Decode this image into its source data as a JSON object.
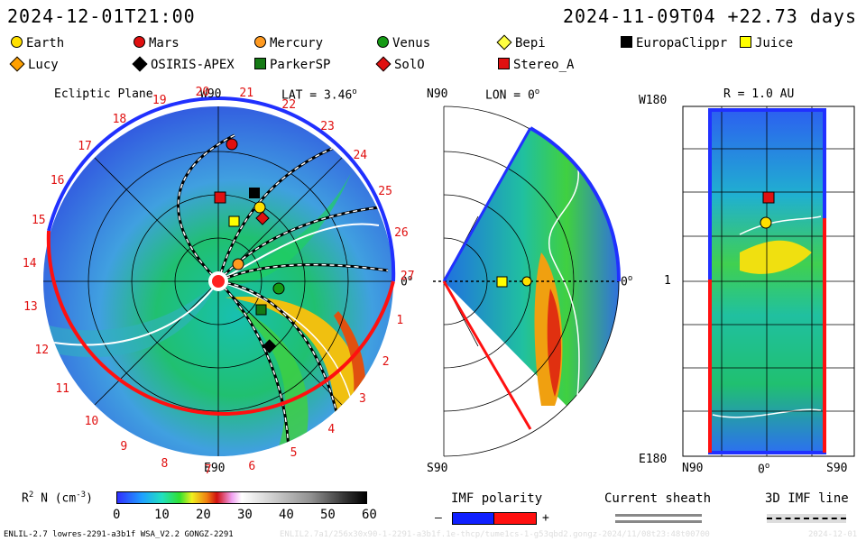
{
  "header": {
    "left_time": "2024-12-01T21:00",
    "right_time": "2024-11-09T04 +22.73 days"
  },
  "legend": [
    {
      "label": "Earth",
      "shape": "circle",
      "color": "#ffe000"
    },
    {
      "label": "Mars",
      "shape": "circle",
      "color": "#e01010"
    },
    {
      "label": "Mercury",
      "shape": "circle",
      "color": "#ff9a20"
    },
    {
      "label": "Venus",
      "shape": "circle",
      "color": "#159a15"
    },
    {
      "label": "Bepi",
      "shape": "diamond",
      "color": "#ffff40"
    },
    {
      "label": "EuropaClippr",
      "shape": "square",
      "color": "#000000"
    },
    {
      "label": "Juice",
      "shape": "square",
      "color": "#ffff00"
    },
    {
      "label": "Lucy",
      "shape": "diamond",
      "color": "#ffa000"
    },
    {
      "label": "OSIRIS-APEX",
      "shape": "diamond",
      "color": "#000000"
    },
    {
      "label": "ParkerSP",
      "shape": "square",
      "color": "#157a15"
    },
    {
      "label": "SolO",
      "shape": "diamond",
      "color": "#e01010"
    },
    {
      "label": "Stereo_A",
      "shape": "square",
      "color": "#e01010"
    }
  ],
  "ecliptic": {
    "title": "Ecliptic Plane",
    "lat": "LAT = 3.46",
    "deg": "o",
    "top": "W90",
    "bottom": "E90",
    "right": "0",
    "deg2": "o",
    "rotations": [
      "1",
      "2",
      "3",
      "4",
      "5",
      "6",
      "7",
      "8",
      "9",
      "10",
      "11",
      "12",
      "13",
      "14",
      "15",
      "16",
      "17",
      "18",
      "19",
      "20",
      "21",
      "22",
      "23",
      "24",
      "25",
      "26",
      "27"
    ]
  },
  "meridional": {
    "n": "N90",
    "s": "S90",
    "lon": "LON = 0",
    "deg": "o",
    "zero": "0",
    "deg2": "o"
  },
  "radial": {
    "title": "R = 1.0 AU",
    "top": "W180",
    "bottom": "E180",
    "mid": "1",
    "left": "N90",
    "center": "0",
    "deg": "o",
    "right": "S90"
  },
  "colorbar": {
    "label": "R",
    "sup": "2",
    "label2": " N (cm",
    "sup2": "-3",
    "label3": ")",
    "ticks": [
      "0",
      "10",
      "20",
      "30",
      "40",
      "50",
      "60"
    ]
  },
  "imf": {
    "title": "IMF polarity",
    "minus": "–",
    "plus": "+"
  },
  "sheath": {
    "title": "Current sheath"
  },
  "imf3d": {
    "title": "3D IMF line"
  },
  "footer": {
    "left": "ENLIL-2.7 lowres-2291-a3b1f WSA_V2.2 GONGZ-2291",
    "mid": "ENLIL2.7a1/256x30x90-1-2291-a3b1f.1e-thcp/tume1cs-1-g53qbd2.gongz-2024/11/08t23:48t00700",
    "right": "2024-12-01"
  }
}
